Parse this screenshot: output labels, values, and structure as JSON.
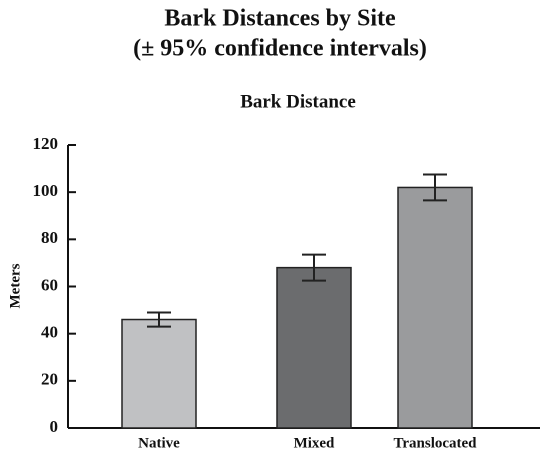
{
  "chart_data": {
    "type": "bar",
    "title": "Bark Distances by Site",
    "subtitle": "(± 95% confidence intervals)",
    "chart_title": "Bark Distance",
    "y_label": "Meters",
    "categories": [
      "Native",
      "Mixed",
      "Translocated"
    ],
    "values": [
      46,
      68,
      102
    ],
    "errors": [
      3,
      5.5,
      5.5
    ],
    "colors": [
      "#c0c1c3",
      "#6b6c6e",
      "#9a9b9d"
    ],
    "ylim": [
      0,
      120
    ],
    "yticks": [
      0,
      20,
      40,
      60,
      80,
      100,
      120
    ]
  }
}
